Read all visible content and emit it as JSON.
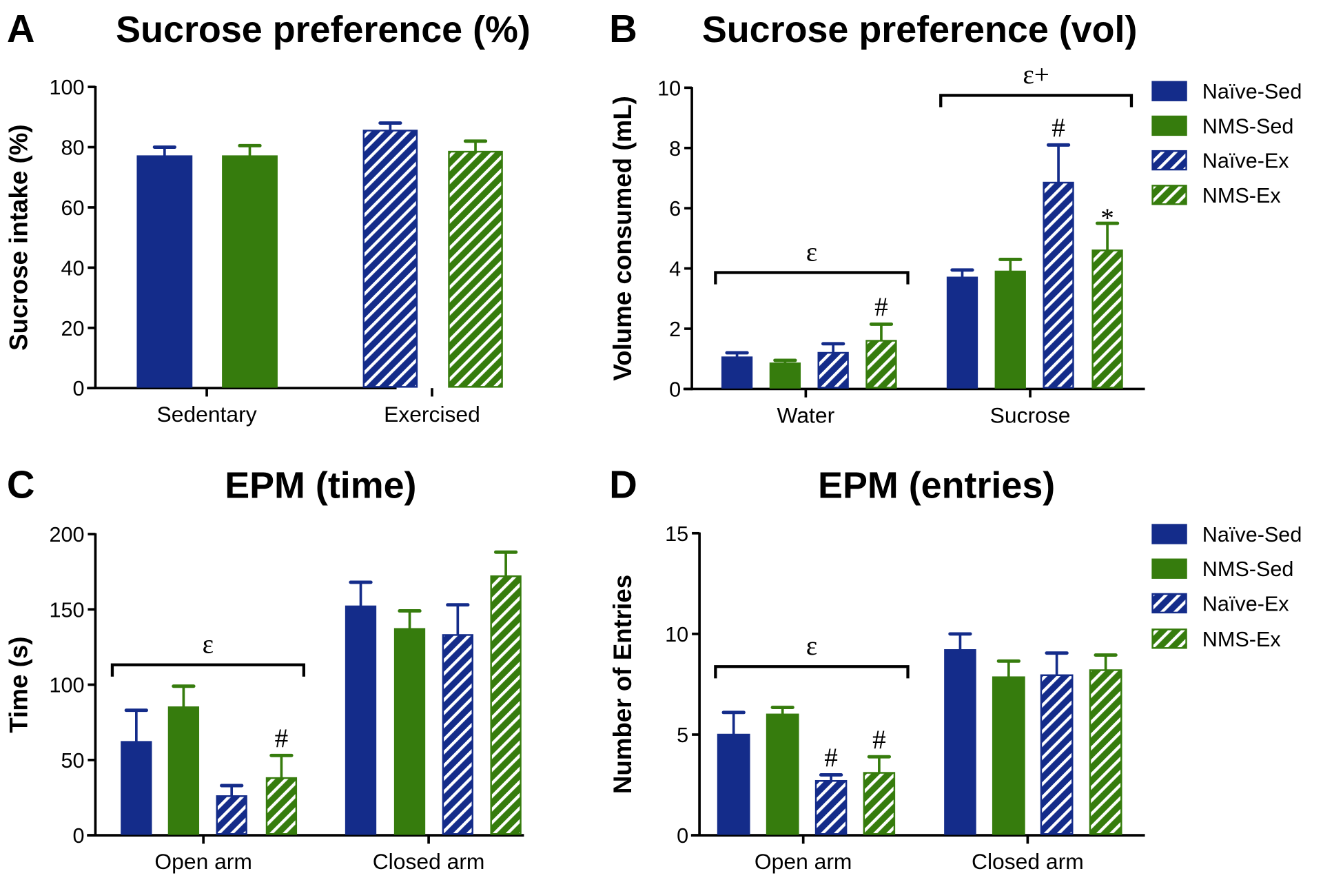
{
  "colors": {
    "naive": "#142c8a",
    "nms": "#367c0d",
    "axis": "#000000"
  },
  "legend": [
    "Naïve-Sed",
    "NMS-Sed",
    "Naïve-Ex",
    "NMS-Ex"
  ],
  "chart_data": [
    {
      "panel": "A",
      "type": "bar",
      "title": "Sucrose preference (%)",
      "ylabel": "Sucrose intake (%)",
      "xlabel": "",
      "ylim": [
        0,
        100
      ],
      "yticks": [
        0,
        20,
        40,
        60,
        80,
        100
      ],
      "categories": [
        "Sedentary",
        "Exercised"
      ],
      "series": [
        {
          "name": "Naïve-Sed",
          "values": [
            77,
            null
          ],
          "errors": [
            3,
            null
          ]
        },
        {
          "name": "NMS-Sed",
          "values": [
            77,
            null
          ],
          "errors": [
            3.5,
            null
          ]
        },
        {
          "name": "Naïve-Ex",
          "values": [
            null,
            85.5
          ],
          "errors": [
            null,
            2.5
          ]
        },
        {
          "name": "NMS-Ex",
          "values": [
            null,
            78.5
          ],
          "errors": [
            null,
            3.5
          ]
        }
      ],
      "bar_annotations": [],
      "group_annotations": [],
      "legend": false
    },
    {
      "panel": "B",
      "type": "bar",
      "title": "Sucrose preference (vol)",
      "ylabel": "Volume consumed (mL)",
      "xlabel": "",
      "ylim": [
        0,
        10
      ],
      "yticks": [
        0,
        2,
        4,
        6,
        8,
        10
      ],
      "categories": [
        "Water",
        "Sucrose"
      ],
      "series": [
        {
          "name": "Naïve-Sed",
          "values": [
            1.05,
            3.7
          ],
          "errors": [
            0.15,
            0.25
          ]
        },
        {
          "name": "NMS-Sed",
          "values": [
            0.85,
            3.9
          ],
          "errors": [
            0.1,
            0.4
          ]
        },
        {
          "name": "Naïve-Ex",
          "values": [
            1.2,
            6.85
          ],
          "errors": [
            0.3,
            1.25
          ]
        },
        {
          "name": "NMS-Ex",
          "values": [
            1.6,
            4.6
          ],
          "errors": [
            0.55,
            0.9
          ]
        }
      ],
      "bar_annotations": [
        {
          "category": 0,
          "series": 3,
          "text": "#"
        },
        {
          "category": 1,
          "series": 2,
          "text": "#"
        },
        {
          "category": 1,
          "series": 3,
          "text": "*"
        }
      ],
      "group_annotations": [
        {
          "category": 0,
          "text": "ε"
        },
        {
          "category": 1,
          "text": "ε+"
        }
      ],
      "legend": true,
      "legend_position": "top-right"
    },
    {
      "panel": "C",
      "type": "bar",
      "title": "EPM (time)",
      "ylabel": "Time (s)",
      "xlabel": "",
      "ylim": [
        0,
        200
      ],
      "yticks": [
        0,
        50,
        100,
        150,
        200
      ],
      "categories": [
        "Open arm",
        "Closed arm"
      ],
      "series": [
        {
          "name": "Naïve-Sed",
          "values": [
            62,
            152
          ],
          "errors": [
            21,
            16
          ]
        },
        {
          "name": "NMS-Sed",
          "values": [
            85,
            137
          ],
          "errors": [
            14,
            12
          ]
        },
        {
          "name": "Naïve-Ex",
          "values": [
            26,
            133
          ],
          "errors": [
            7,
            20
          ]
        },
        {
          "name": "NMS-Ex",
          "values": [
            38,
            172
          ],
          "errors": [
            15,
            16
          ]
        }
      ],
      "bar_annotations": [
        {
          "category": 0,
          "series": 3,
          "text": "#"
        }
      ],
      "group_annotations": [
        {
          "category": 0,
          "text": "ε"
        }
      ],
      "legend": false
    },
    {
      "panel": "D",
      "type": "bar",
      "title": "EPM (entries)",
      "ylabel": "Number of Entries",
      "xlabel": "",
      "ylim": [
        0,
        15
      ],
      "yticks": [
        0,
        5,
        10,
        15
      ],
      "categories": [
        "Open arm",
        "Closed arm"
      ],
      "series": [
        {
          "name": "Naïve-Sed",
          "values": [
            5.0,
            9.2
          ],
          "errors": [
            1.1,
            0.8
          ]
        },
        {
          "name": "NMS-Sed",
          "values": [
            6.0,
            7.85
          ],
          "errors": [
            0.35,
            0.8
          ]
        },
        {
          "name": "Naïve-Ex",
          "values": [
            2.7,
            7.95
          ],
          "errors": [
            0.3,
            1.1
          ]
        },
        {
          "name": "NMS-Ex",
          "values": [
            3.1,
            8.2
          ],
          "errors": [
            0.8,
            0.75
          ]
        }
      ],
      "bar_annotations": [
        {
          "category": 0,
          "series": 2,
          "text": "#"
        },
        {
          "category": 0,
          "series": 3,
          "text": "#"
        }
      ],
      "group_annotations": [
        {
          "category": 0,
          "text": "ε"
        }
      ],
      "legend": true,
      "legend_position": "top-right"
    }
  ]
}
